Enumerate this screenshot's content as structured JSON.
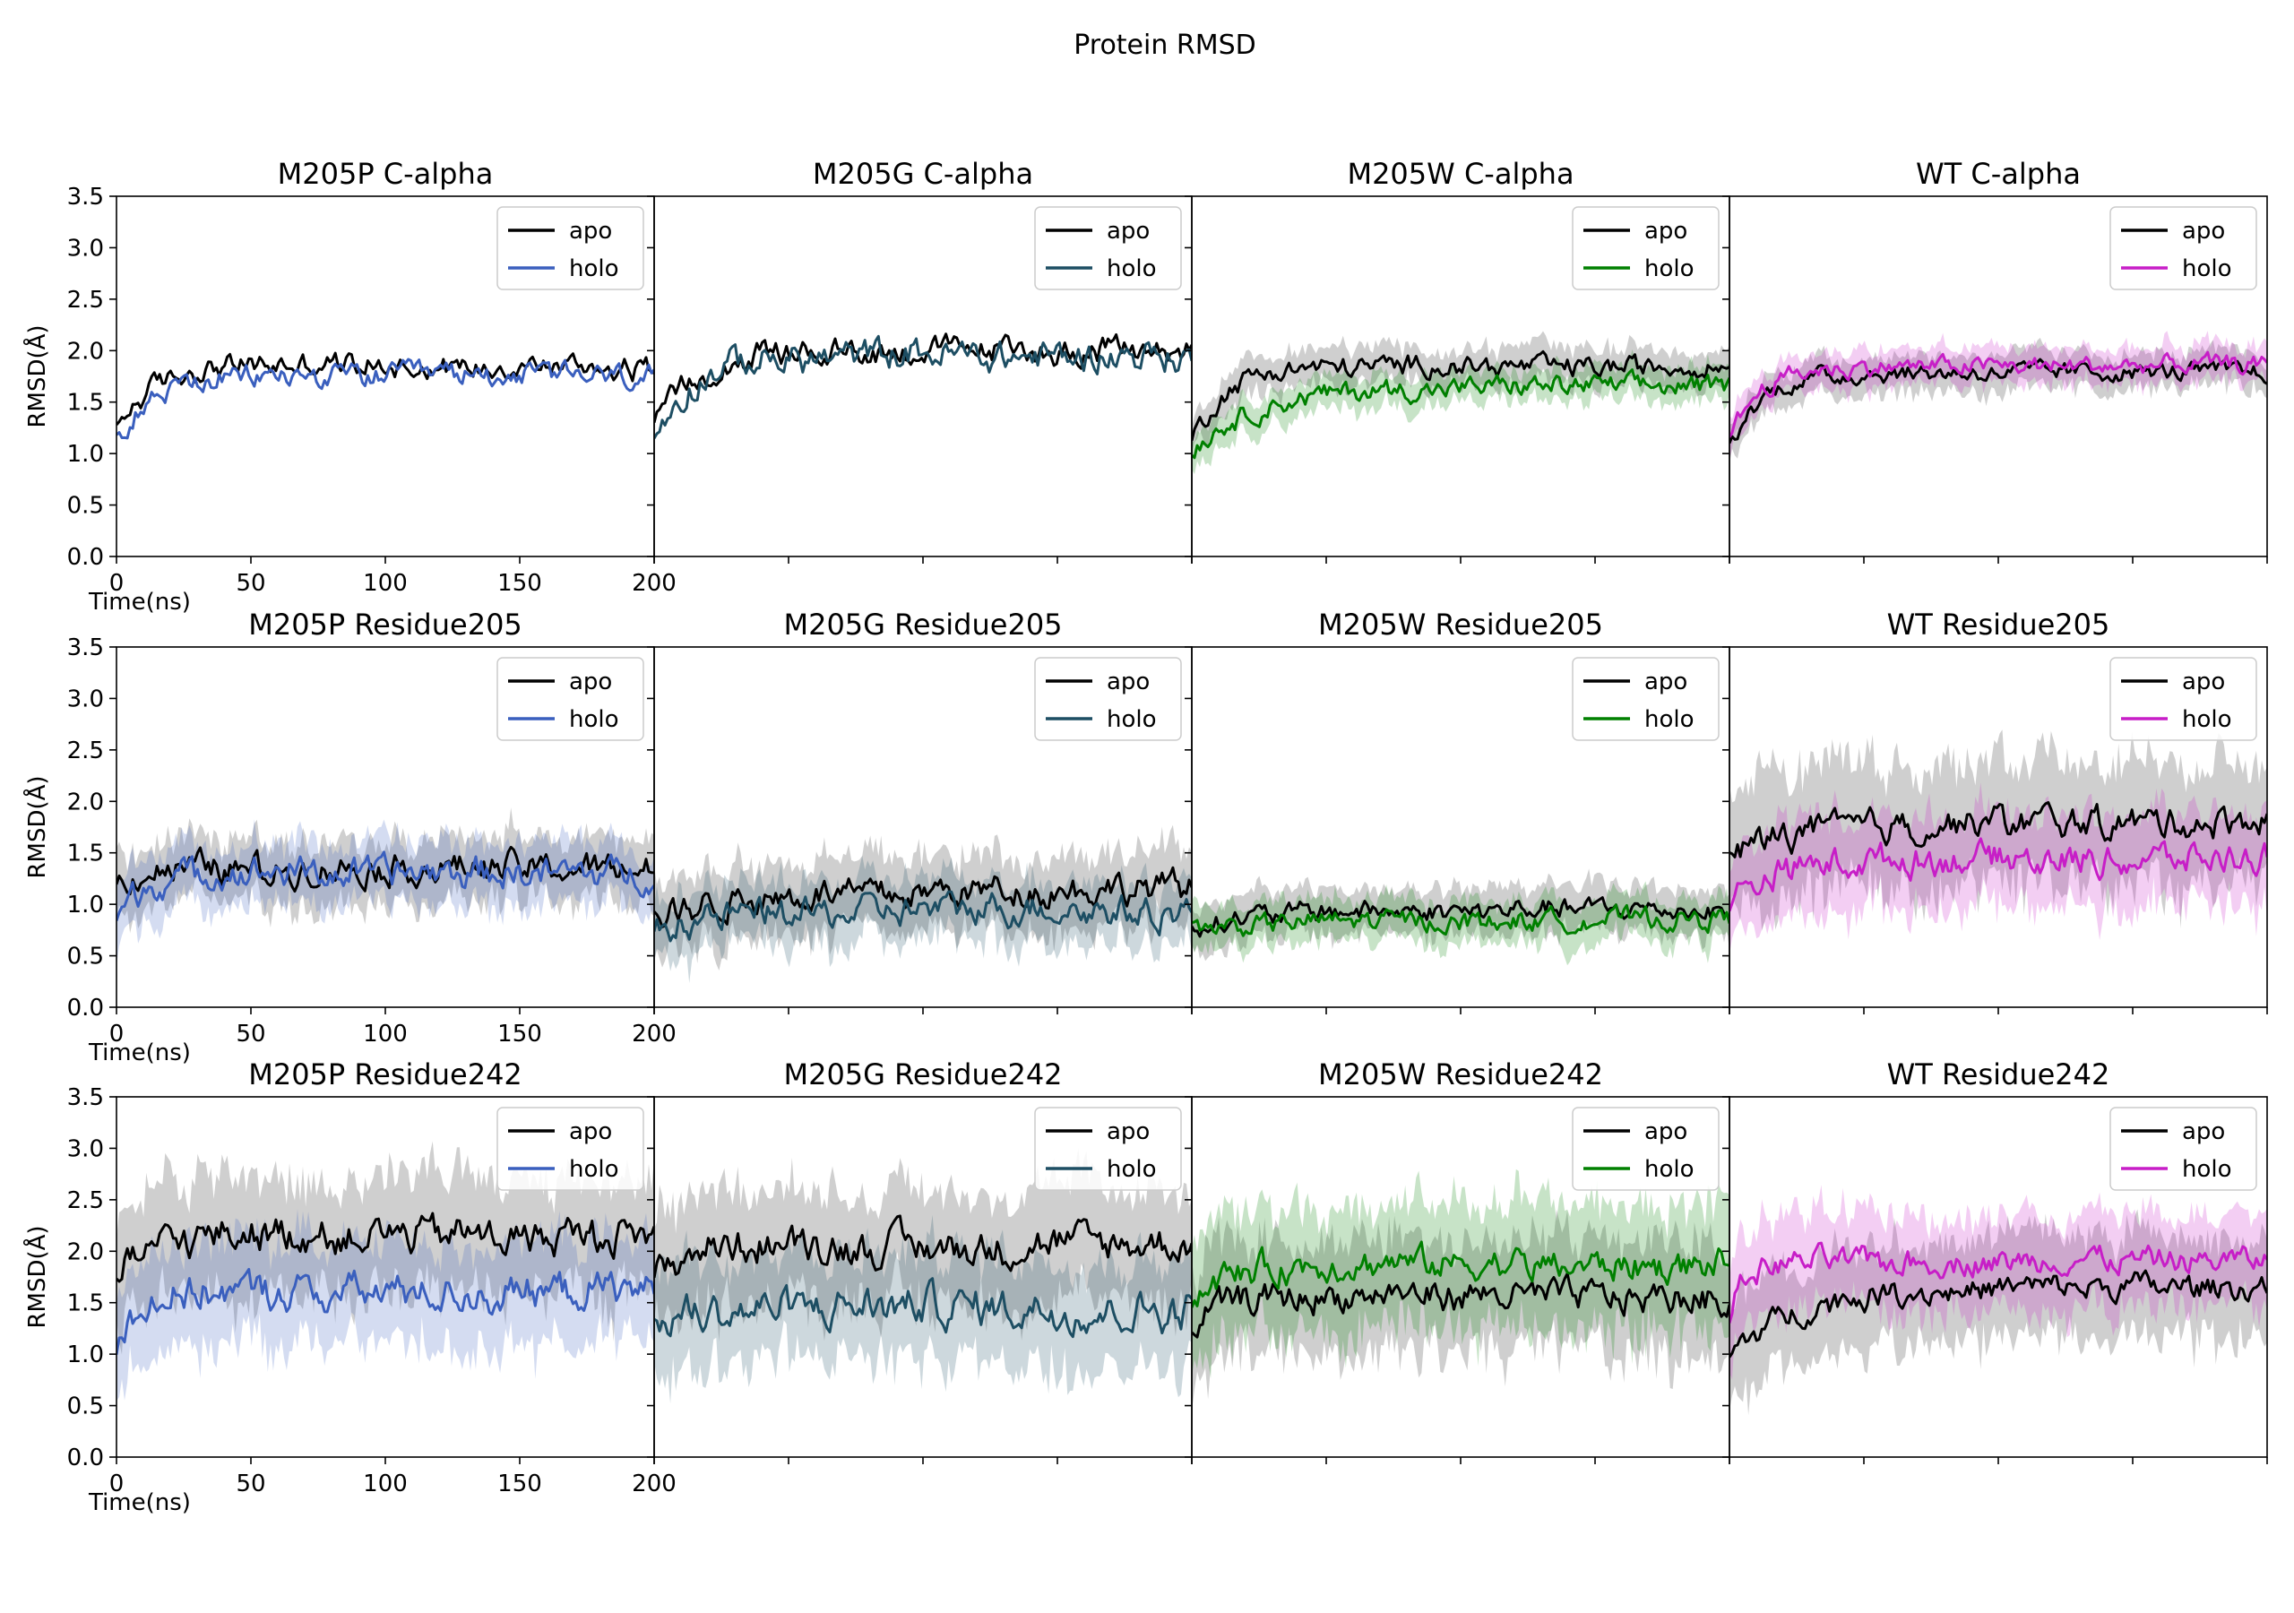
{
  "figure": {
    "title": "Protein RMSD"
  },
  "chart_data": {
    "type": "line",
    "shared": {
      "x_range": [
        0,
        200
      ],
      "y_range": [
        0.0,
        3.5
      ],
      "x_ticks": [
        0,
        50,
        100,
        150,
        200
      ],
      "y_ticks": [
        0.0,
        0.5,
        1.0,
        1.5,
        2.0,
        2.5,
        3.0,
        3.5
      ],
      "xlabel": "Time(ns)",
      "ylabel": "RMSD(Å)",
      "legend_position": "top-right",
      "n_points": 200
    },
    "variants": [
      {
        "name": "M205P",
        "holo_color": "#3a5fbe"
      },
      {
        "name": "M205G",
        "holo_color": "#1d4e63"
      },
      {
        "name": "M205W",
        "holo_color": "#008000"
      },
      {
        "name": "WT",
        "holo_color": "#c71ec7"
      }
    ],
    "rows": [
      "C-alpha",
      "Residue205",
      "Residue242"
    ],
    "series_labels": {
      "apo": "apo",
      "holo": "holo"
    },
    "apo_color": "#000000",
    "panels": [
      {
        "title": "M205P C-alpha",
        "apo": {
          "start": 1.2,
          "plateau": 1.85,
          "tau": 12,
          "noise": 0.09,
          "band": 0.0
        },
        "holo": {
          "start": 1.15,
          "plateau": 1.75,
          "tau": 12,
          "noise": 0.09,
          "band": 0.0
        }
      },
      {
        "title": "M205G C-alpha",
        "apo": {
          "start": 1.2,
          "plateau": 2.0,
          "tau": 15,
          "noise": 0.1,
          "band": 0.0
        },
        "holo": {
          "start": 1.15,
          "plateau": 1.95,
          "tau": 15,
          "noise": 0.12,
          "band": 0.0
        }
      },
      {
        "title": "M205W C-alpha",
        "apo": {
          "start": 1.1,
          "plateau": 1.85,
          "tau": 12,
          "noise": 0.08,
          "band": 0.18
        },
        "holo": {
          "start": 1.05,
          "plateau": 1.65,
          "tau": 25,
          "noise": 0.08,
          "band": 0.16
        }
      },
      {
        "title": "WT C-alpha",
        "apo": {
          "start": 1.05,
          "plateau": 1.8,
          "tau": 12,
          "noise": 0.07,
          "band": 0.17
        },
        "holo": {
          "start": 1.1,
          "plateau": 1.85,
          "tau": 10,
          "noise": 0.07,
          "band": 0.17
        }
      },
      {
        "title": "M205P Residue205",
        "apo": {
          "start": 1.25,
          "plateau": 1.35,
          "tau": 10,
          "noise": 0.12,
          "band": 0.3
        },
        "holo": {
          "start": 0.85,
          "plateau": 1.3,
          "tau": 10,
          "noise": 0.12,
          "band": 0.3
        }
      },
      {
        "title": "M205G Residue205",
        "apo": {
          "start": 0.85,
          "plateau": 1.15,
          "tau": 30,
          "noise": 0.12,
          "band": 0.35
        },
        "holo": {
          "start": 0.75,
          "plateau": 0.95,
          "tau": 30,
          "noise": 0.12,
          "band": 0.3
        }
      },
      {
        "title": "M205W Residue205",
        "apo": {
          "start": 0.8,
          "plateau": 0.95,
          "tau": 30,
          "noise": 0.08,
          "band": 0.22
        },
        "holo": {
          "start": 0.75,
          "plateau": 0.85,
          "tau": 30,
          "noise": 0.08,
          "band": 0.2
        }
      },
      {
        "title": "WT Residue205",
        "apo": {
          "start": 1.45,
          "plateau": 1.8,
          "tau": 20,
          "noise": 0.12,
          "band": 0.6
        },
        "holo": {
          "start": 1.05,
          "plateau": 1.45,
          "tau": 20,
          "noise": 0.12,
          "band": 0.45
        }
      },
      {
        "title": "M205P Residue242",
        "apo": {
          "start": 1.6,
          "plateau": 2.15,
          "tau": 8,
          "noise": 0.14,
          "band": 0.55
        },
        "holo": {
          "start": 1.1,
          "plateau": 1.6,
          "tau": 6,
          "noise": 0.14,
          "band": 0.5
        }
      },
      {
        "title": "M205G Residue242",
        "apo": {
          "start": 1.7,
          "plateau": 2.05,
          "tau": 8,
          "noise": 0.14,
          "band": 0.55
        },
        "holo": {
          "start": 1.2,
          "plateau": 1.45,
          "tau": 6,
          "noise": 0.15,
          "band": 0.5
        }
      },
      {
        "title": "M205W Residue242",
        "apo": {
          "start": 1.25,
          "plateau": 1.55,
          "tau": 10,
          "noise": 0.12,
          "band": 0.55
        },
        "holo": {
          "start": 1.5,
          "plateau": 1.85,
          "tau": 10,
          "noise": 0.12,
          "band": 0.6
        }
      },
      {
        "title": "WT Residue242",
        "apo": {
          "start": 1.0,
          "plateau": 1.65,
          "tau": 25,
          "noise": 0.1,
          "band": 0.5
        },
        "holo": {
          "start": 1.4,
          "plateau": 1.9,
          "tau": 6,
          "noise": 0.1,
          "band": 0.45
        }
      }
    ]
  }
}
